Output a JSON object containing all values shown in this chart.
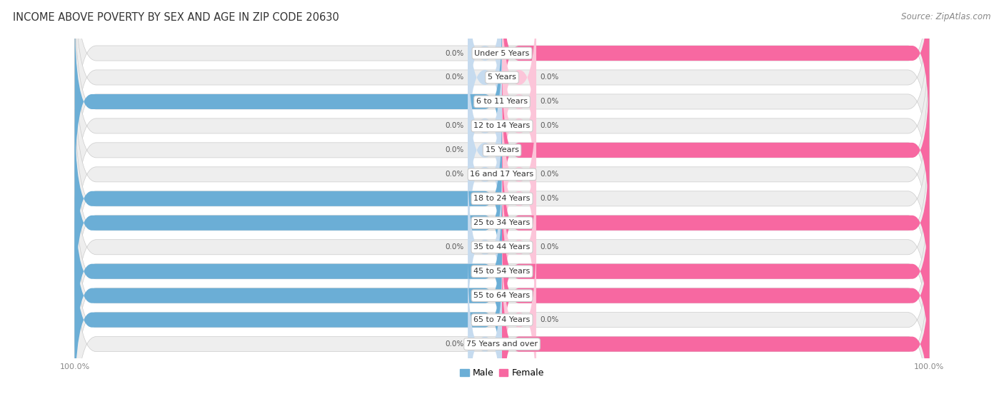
{
  "title": "INCOME ABOVE POVERTY BY SEX AND AGE IN ZIP CODE 20630",
  "source": "Source: ZipAtlas.com",
  "categories": [
    "Under 5 Years",
    "5 Years",
    "6 to 11 Years",
    "12 to 14 Years",
    "15 Years",
    "16 and 17 Years",
    "18 to 24 Years",
    "25 to 34 Years",
    "35 to 44 Years",
    "45 to 54 Years",
    "55 to 64 Years",
    "65 to 74 Years",
    "75 Years and over"
  ],
  "male_values": [
    0.0,
    0.0,
    100.0,
    0.0,
    0.0,
    0.0,
    100.0,
    100.0,
    0.0,
    100.0,
    100.0,
    100.0,
    0.0
  ],
  "female_values": [
    100.0,
    0.0,
    0.0,
    0.0,
    100.0,
    0.0,
    0.0,
    100.0,
    0.0,
    100.0,
    100.0,
    0.0,
    100.0
  ],
  "male_color": "#6baed6",
  "female_color": "#f768a1",
  "male_color_light": "#c6dbef",
  "female_color_light": "#fcc5d9",
  "male_label": "Male",
  "female_label": "Female",
  "bg_color": "#ffffff",
  "bar_bg_color": "#eeeeee",
  "row_sep_color": "#dddddd",
  "title_fontsize": 10.5,
  "source_fontsize": 8.5,
  "label_fontsize": 8,
  "value_fontsize": 7.5,
  "legend_fontsize": 9,
  "axis_label_fontsize": 8
}
